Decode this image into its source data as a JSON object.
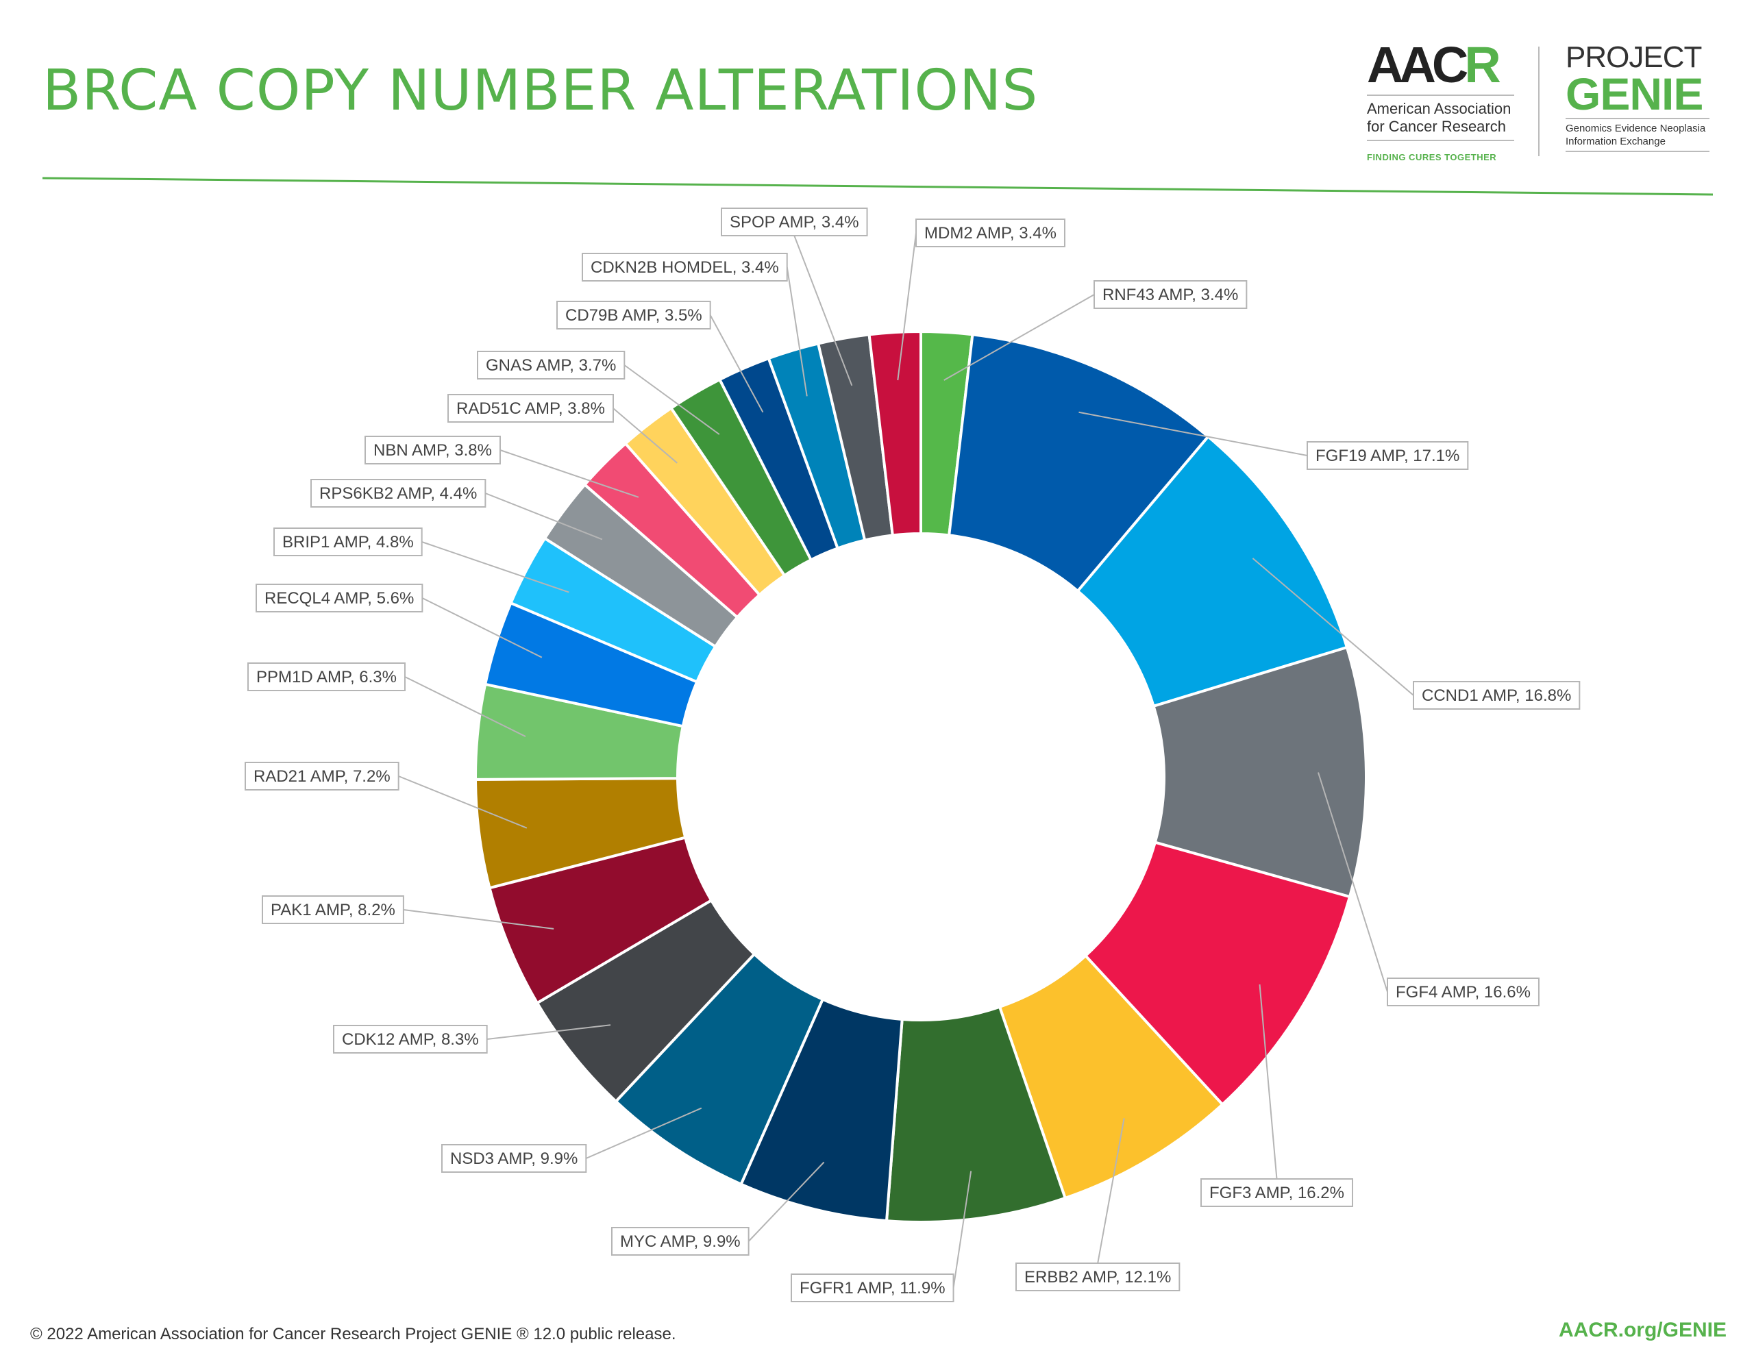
{
  "header": {
    "title": "BRCA COPY NUMBER ALTERATIONS"
  },
  "logos": {
    "aacr": {
      "mark_left": "AAC",
      "mark_accent": "R",
      "name_line1": "American Association",
      "name_line2": "for Cancer Research",
      "tagline": "FINDING CURES TOGETHER"
    },
    "genie": {
      "project": "PROJECT",
      "word": "GENIE",
      "sub_line1": "Genomics Evidence Neoplasia",
      "sub_line2": "Information Exchange"
    }
  },
  "footer": {
    "copyright": "© 2022 American Association for Cancer Research Project GENIE ® 12.0 public release.",
    "link": "AACR.org/GENIE"
  },
  "chart_data": {
    "type": "pie",
    "subtype": "donut",
    "title": "BRCA COPY NUMBER ALTERATIONS",
    "unit": "%",
    "slices": [
      {
        "label": "RNF43 AMP, 3.4%",
        "value": 3.4,
        "color": "#55b84a"
      },
      {
        "label": "FGF19 AMP, 17.1%",
        "value": 17.1,
        "color": "#005aab"
      },
      {
        "label": "CCND1 AMP, 16.8%",
        "value": 16.8,
        "color": "#00a4e4"
      },
      {
        "label": "FGF4 AMP, 16.6%",
        "value": 16.6,
        "color": "#6d747b"
      },
      {
        "label": "FGF3 AMP, 16.2%",
        "value": 16.2,
        "color": "#ed174b"
      },
      {
        "label": "ERBB2 AMP, 12.1%",
        "value": 12.1,
        "color": "#fcc12c"
      },
      {
        "label": "FGFR1 AMP, 11.9%",
        "value": 11.9,
        "color": "#326e2e"
      },
      {
        "label": "MYC AMP, 9.9%",
        "value": 9.9,
        "color": "#003764"
      },
      {
        "label": "NSD3 AMP, 9.9%",
        "value": 9.9,
        "color": "#005f88"
      },
      {
        "label": "CDK12 AMP, 8.3%",
        "value": 8.3,
        "color": "#424549"
      },
      {
        "label": "PAK1 AMP, 8.2%",
        "value": 8.2,
        "color": "#920c2d"
      },
      {
        "label": "RAD21 AMP, 7.2%",
        "value": 7.2,
        "color": "#b17f00"
      },
      {
        "label": "PPM1D AMP, 6.3%",
        "value": 6.3,
        "color": "#72c56c"
      },
      {
        "label": "RECQL4 AMP, 5.6%",
        "value": 5.6,
        "color": "#0179e4"
      },
      {
        "label": "BRIP1 AMP, 4.8%",
        "value": 4.8,
        "color": "#1fc1fb"
      },
      {
        "label": "RPS6KB2 AMP, 4.4%",
        "value": 4.4,
        "color": "#8d9499"
      },
      {
        "label": "NBN AMP, 3.8%",
        "value": 3.8,
        "color": "#f14b73"
      },
      {
        "label": "RAD51C AMP, 3.8%",
        "value": 3.8,
        "color": "#ffd35c"
      },
      {
        "label": "GNAS AMP, 3.7%",
        "value": 3.7,
        "color": "#3e953a"
      },
      {
        "label": "CD79B AMP, 3.5%",
        "value": 3.5,
        "color": "#00488d"
      },
      {
        "label": "CDKN2B HOMDEL, 3.4%",
        "value": 3.4,
        "color": "#0083b9"
      },
      {
        "label": "SPOP AMP, 3.4%",
        "value": 3.4,
        "color": "#51575e"
      },
      {
        "label": "MDM2 AMP, 3.4%",
        "value": 3.4,
        "color": "#c8103e"
      }
    ]
  }
}
